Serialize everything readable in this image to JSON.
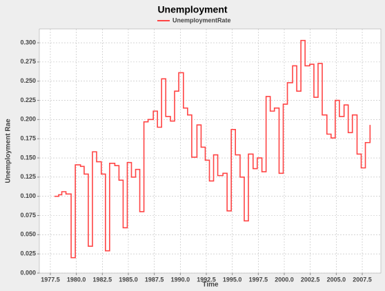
{
  "chart_data": {
    "type": "step",
    "title": "Unemployment",
    "x_label": "Time",
    "y_label": "Unemployment Rae",
    "xlim": [
      1976.44,
      2009.29
    ],
    "ylim": [
      0,
      0.318
    ],
    "grid": true,
    "legend": "top",
    "xticks": [
      {
        "value": 1977.5,
        "label": "1977.5"
      },
      {
        "value": 1980,
        "label": "1980.0"
      },
      {
        "value": 1982.5,
        "label": "1982.5"
      },
      {
        "value": 1985,
        "label": "1985.0"
      },
      {
        "value": 1987.5,
        "label": "1987.5"
      },
      {
        "value": 1990,
        "label": "1990.0"
      },
      {
        "value": 1992.5,
        "label": "1992.5"
      },
      {
        "value": 1995,
        "label": "1995.0"
      },
      {
        "value": 1997.5,
        "label": "1997.5"
      },
      {
        "value": 2000,
        "label": "2000.0"
      },
      {
        "value": 2002.5,
        "label": "2002.5"
      },
      {
        "value": 2005,
        "label": "2005.0"
      },
      {
        "value": 2007.5,
        "label": "2007.5"
      }
    ],
    "yticks": [
      {
        "value": 0,
        "label": "0.000"
      },
      {
        "value": 0.025,
        "label": "0.025"
      },
      {
        "value": 0.05,
        "label": "0.050"
      },
      {
        "value": 0.075,
        "label": "0.075"
      },
      {
        "value": 0.1,
        "label": "0.100"
      },
      {
        "value": 0.125,
        "label": "0.125"
      },
      {
        "value": 0.15,
        "label": "0.150"
      },
      {
        "value": 0.175,
        "label": "0.175"
      },
      {
        "value": 0.2,
        "label": "0.200"
      },
      {
        "value": 0.225,
        "label": "0.225"
      },
      {
        "value": 0.25,
        "label": "0.250"
      },
      {
        "value": 0.275,
        "label": "0.275"
      },
      {
        "value": 0.3,
        "label": "0.300"
      }
    ],
    "x": [
      1977.9,
      1978.3,
      1978.6,
      1979.0,
      1979.5,
      1979.9,
      1980.4,
      1980.75,
      1981.15,
      1981.55,
      1981.95,
      1982.4,
      1982.8,
      1983.2,
      1983.7,
      1984.1,
      1984.5,
      1984.9,
      1985.3,
      1985.7,
      1986.1,
      1986.5,
      1986.9,
      1987.4,
      1987.8,
      1988.2,
      1988.6,
      1989.05,
      1989.45,
      1989.85,
      1990.3,
      1990.7,
      1991.1,
      1991.6,
      1992.0,
      1992.4,
      1992.8,
      1993.2,
      1993.6,
      1994.1,
      1994.5,
      1994.9,
      1995.3,
      1995.75,
      1996.15,
      1996.55,
      1997.0,
      1997.4,
      1997.85,
      1998.25,
      1998.65,
      1999.05,
      1999.5,
      1999.9,
      2000.3,
      2000.8,
      2001.2,
      2001.6,
      2002.0,
      2002.45,
      2002.85,
      2003.25,
      2003.65,
      2004.1,
      2004.5,
      2004.9,
      2005.3,
      2005.75,
      2006.15,
      2006.55,
      2007.0,
      2007.4,
      2007.8,
      2008.25
    ],
    "series": [
      {
        "name": "UnemploymentRate",
        "color": "#ff4444",
        "values": [
          0.1,
          0.102,
          0.106,
          0.103,
          0.02,
          0.141,
          0.139,
          0.129,
          0.035,
          0.158,
          0.145,
          0.129,
          0.029,
          0.143,
          0.14,
          0.121,
          0.059,
          0.144,
          0.125,
          0.135,
          0.08,
          0.197,
          0.2,
          0.211,
          0.19,
          0.253,
          0.204,
          0.198,
          0.237,
          0.261,
          0.215,
          0.206,
          0.151,
          0.193,
          0.164,
          0.147,
          0.12,
          0.154,
          0.127,
          0.13,
          0.081,
          0.187,
          0.154,
          0.125,
          0.068,
          0.155,
          0.136,
          0.15,
          0.132,
          0.23,
          0.211,
          0.215,
          0.13,
          0.22,
          0.248,
          0.27,
          0.237,
          0.303,
          0.27,
          0.272,
          0.229,
          0.273,
          0.206,
          0.181,
          0.176,
          0.225,
          0.204,
          0.219,
          0.183,
          0.206,
          0.155,
          0.137,
          0.17,
          0.193
        ]
      }
    ]
  }
}
